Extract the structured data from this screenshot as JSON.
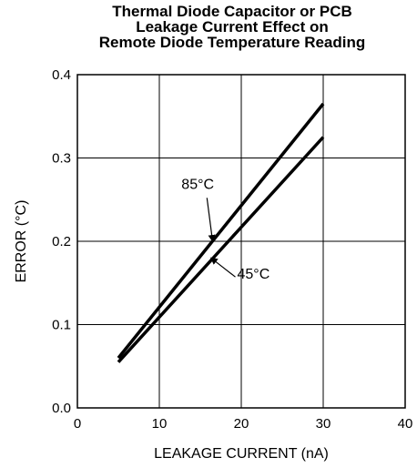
{
  "chart_data": {
    "type": "line",
    "title_lines": [
      "Thermal Diode Capacitor or PCB",
      "Leakage Current Effect on",
      "Remote Diode Temperature Reading"
    ],
    "xlabel": "LEAKAGE CURRENT (nA)",
    "ylabel": "ERROR (°C)",
    "xlim": [
      0,
      40
    ],
    "ylim": [
      0,
      0.4
    ],
    "xticks": [
      0,
      10,
      20,
      30,
      40
    ],
    "xtick_labels": [
      "0",
      "10",
      "20",
      "30",
      "40"
    ],
    "yticks": [
      0,
      0.1,
      0.2,
      0.3,
      0.4
    ],
    "ytick_labels": [
      "0.0",
      "0.1",
      "0.2",
      "0.3",
      "0.4"
    ],
    "grid": true,
    "series": [
      {
        "name": "85°C",
        "x": [
          5,
          30
        ],
        "y": [
          0.06,
          0.365
        ]
      },
      {
        "name": "45°C",
        "x": [
          5,
          30
        ],
        "y": [
          0.055,
          0.325
        ]
      }
    ],
    "annotations": [
      {
        "text": "85°C",
        "series": 0,
        "point": [
          16.5,
          0.2
        ],
        "text_at": [
          12.7,
          0.263
        ]
      },
      {
        "text": "45°C",
        "series": 1,
        "point": [
          16.3,
          0.18
        ],
        "text_at": [
          19.5,
          0.155
        ]
      }
    ]
  }
}
